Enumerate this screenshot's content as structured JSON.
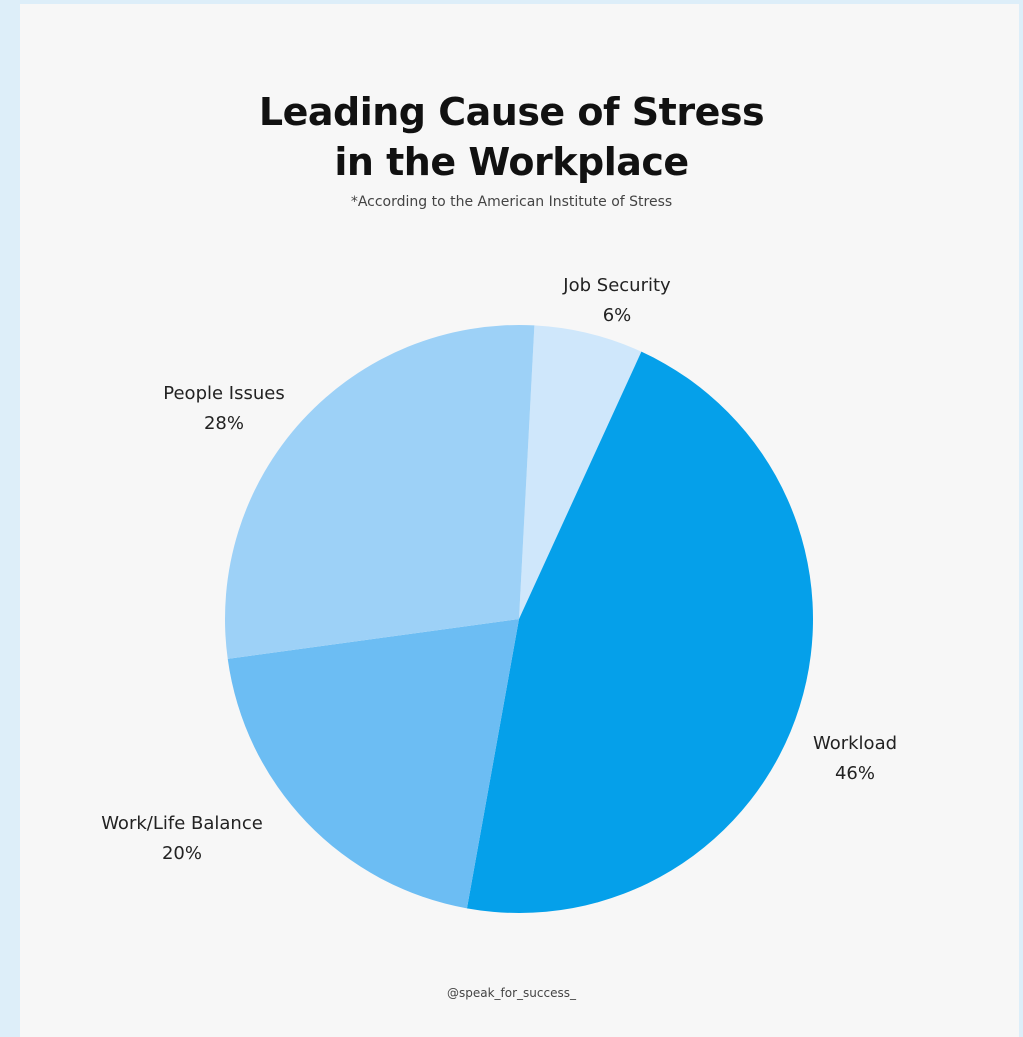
{
  "chart_data": {
    "type": "pie",
    "title_lines": [
      "Leading Cause of Stress",
      "in the Workplace"
    ],
    "subtitle": "*According to the American Institute of Stress",
    "slices": [
      {
        "label": "Job Security",
        "value": 6,
        "value_label": "6%",
        "color": "#cfe7fb"
      },
      {
        "label": "Workload",
        "value": 46,
        "value_label": "46%",
        "color": "#05a0ea"
      },
      {
        "label": "Work/Life Balance",
        "value": 20,
        "value_label": "20%",
        "color": "#6cbdf3"
      },
      {
        "label": "People Issues",
        "value": 28,
        "value_label": "28%",
        "color": "#9dd1f7"
      }
    ]
  },
  "footer": "@speak_for_success_",
  "colors": {
    "background": "#ddeef9",
    "panel": "#f7f7f7",
    "text": "#111111"
  }
}
